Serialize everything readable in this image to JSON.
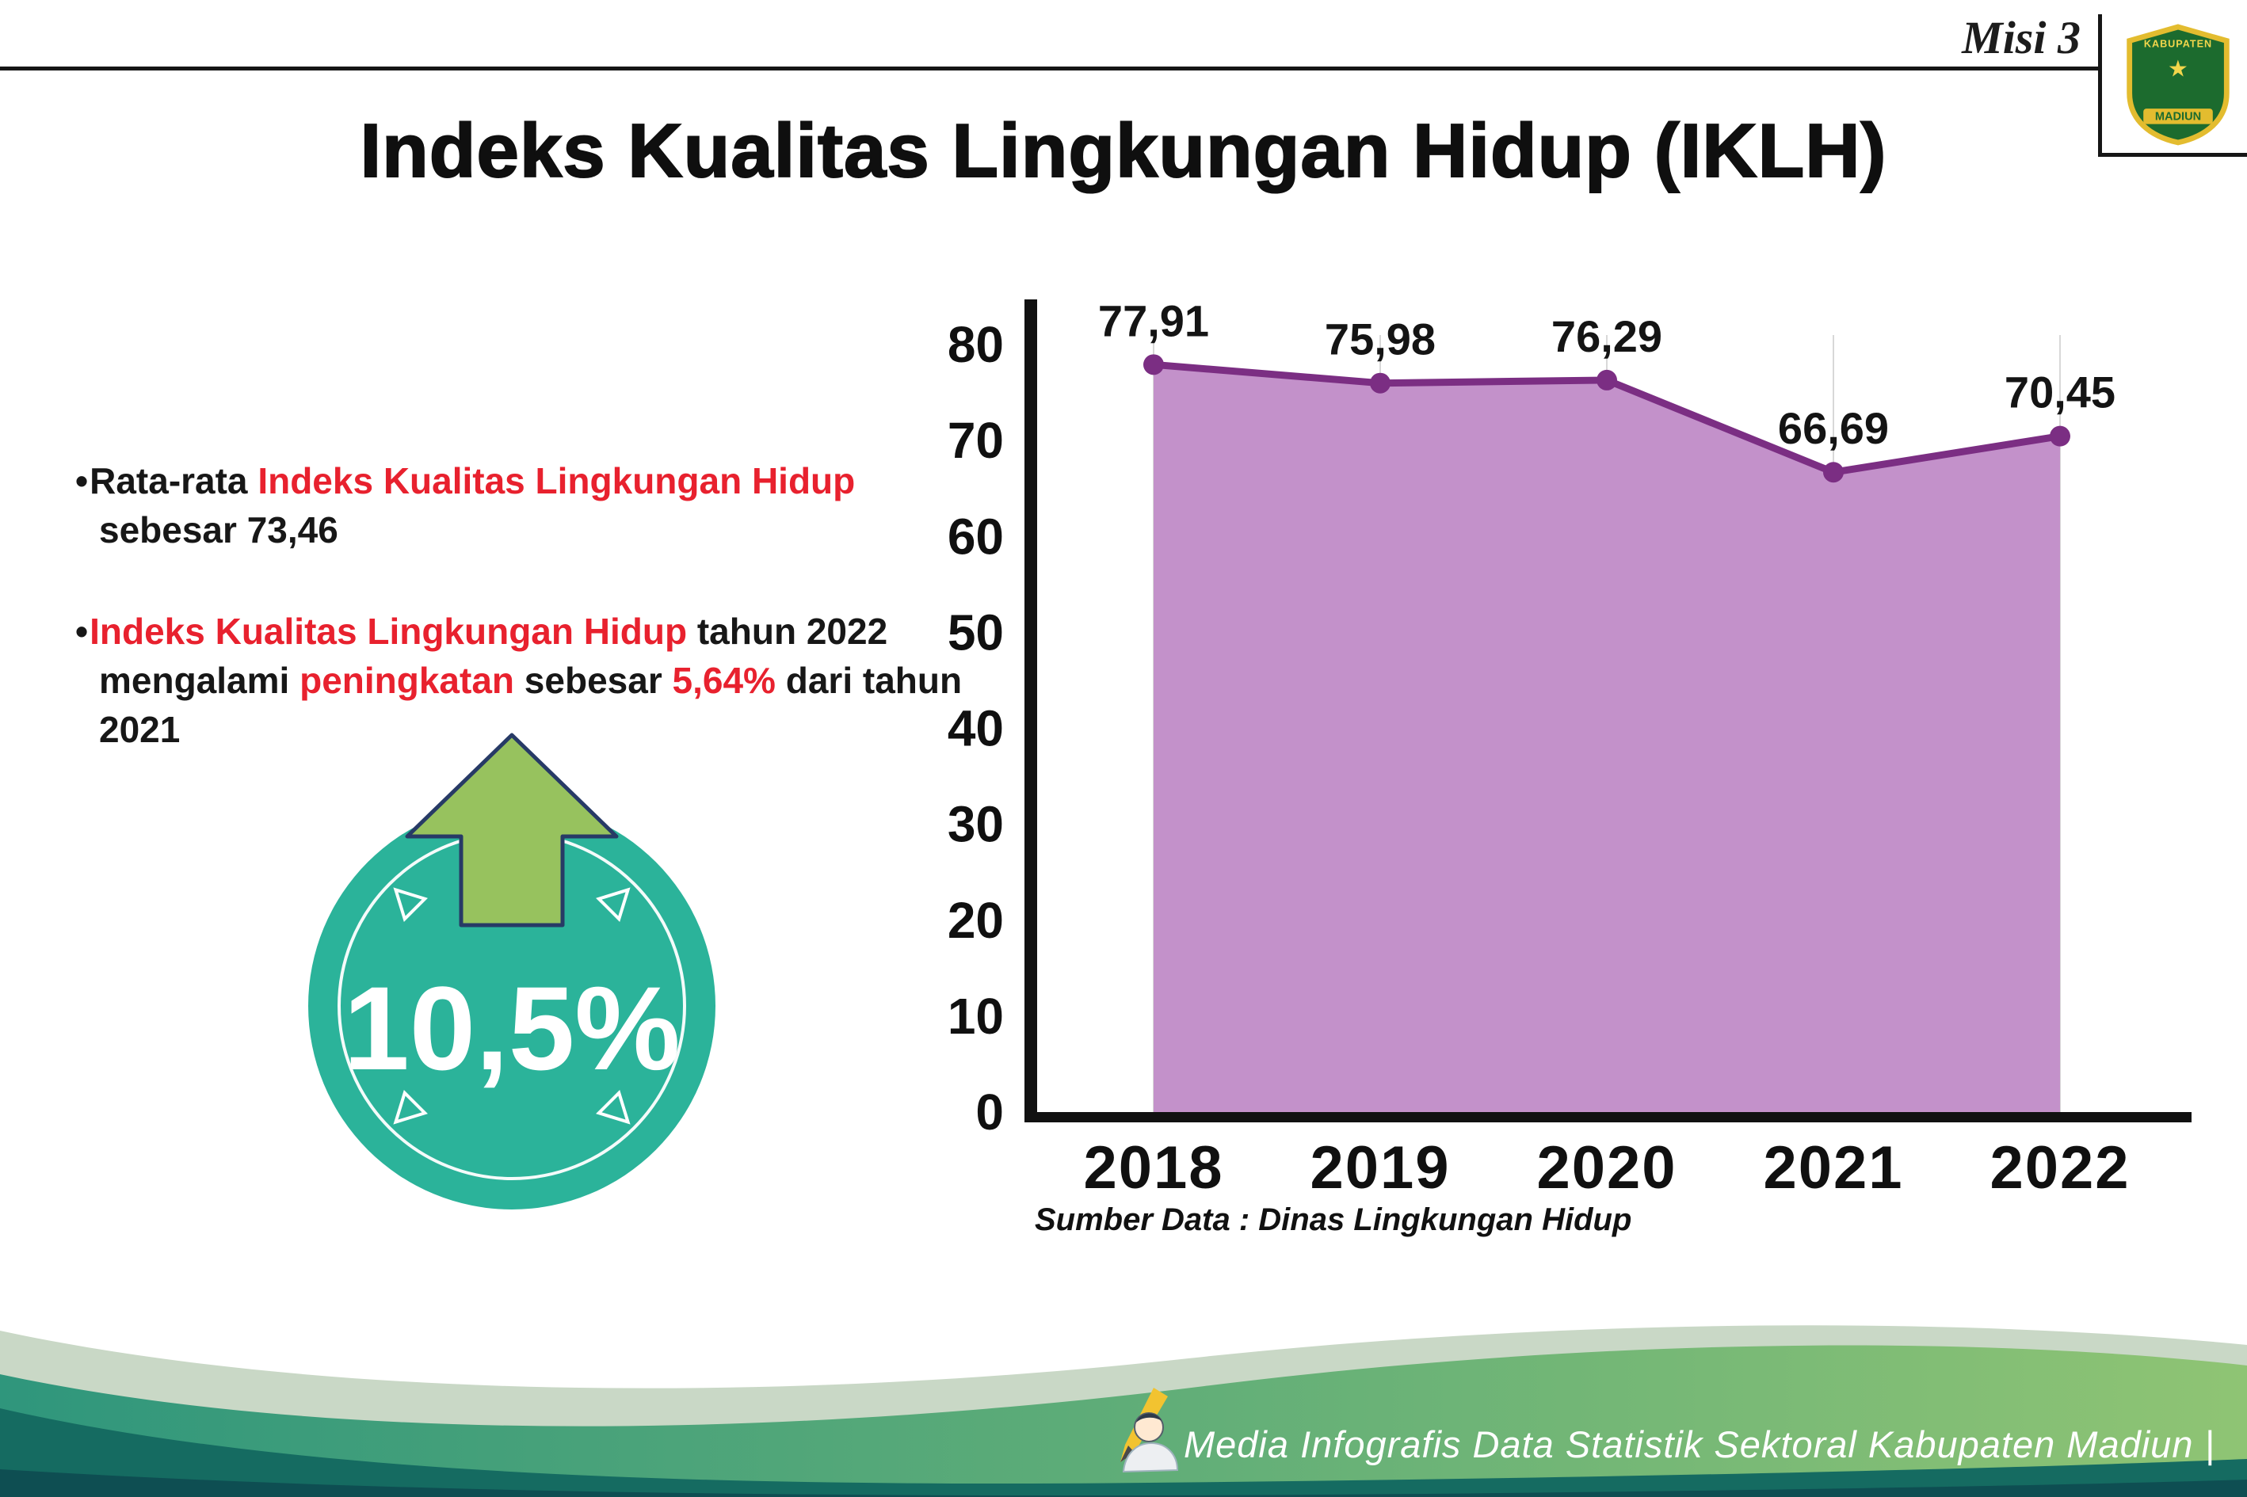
{
  "header": {
    "misi_label": "Misi 3",
    "title": "Indeks Kualitas Lingkungan Hidup (IKLH)"
  },
  "logo": {
    "name": "Kabupaten Madiun emblem",
    "top_text": "KABUPATEN",
    "bottom_text": "MADIUN",
    "star": "★",
    "shield_green": "#1C6B2E",
    "shield_gold": "#E3BC2F"
  },
  "bullets": [
    {
      "segments": [
        {
          "text": "Rata-rata ",
          "red": false
        },
        {
          "text": "Indeks Kualitas Lingkungan Hidup",
          "red": true
        },
        {
          "text": " sebesar 73,46",
          "red": false
        }
      ]
    },
    {
      "segments": [
        {
          "text": "Indeks Kualitas Lingkungan Hidup",
          "red": true
        },
        {
          "text": " tahun 2022 mengalami ",
          "red": false
        },
        {
          "text": "peningkatan",
          "red": true
        },
        {
          "text": " sebesar ",
          "red": false
        },
        {
          "text": "5,64%",
          "red": true
        },
        {
          "text": " dari tahun 2021",
          "red": false
        }
      ]
    }
  ],
  "badge": {
    "value": "10,5%",
    "circle_color": "#2BB39A",
    "arrow_color": "#97C25E",
    "arrow_outline": "#273A66"
  },
  "chart_data": {
    "type": "area",
    "title": "",
    "categories": [
      "2018",
      "2019",
      "2020",
      "2021",
      "2022"
    ],
    "values": [
      77.91,
      75.98,
      76.29,
      66.69,
      70.45
    ],
    "value_labels": [
      "77,91",
      "75,98",
      "76,29",
      "66,69",
      "70,45"
    ],
    "xlabel": "",
    "ylabel": "",
    "ylim": [
      0,
      80
    ],
    "ytick_step": 10,
    "grid": "light vertical gridlines at each year",
    "legend": "none",
    "fill_color": "#C391CA",
    "line_color": "#7B2E83",
    "axis_color": "#111111",
    "gridline_color": "#D8D8D8",
    "source_caption": "Sumber Data : Dinas Lingkungan Hidup"
  },
  "footer": {
    "caption": "Media Infografis Data Statistik Sektoral Kabupaten Madiun |",
    "colors": {
      "light_wave": "#C9D8C6",
      "mid_wave_start": "#2F967C",
      "mid_wave_end": "#8FC474",
      "dark_wave": "#156B61",
      "deep_wave": "#0E4E52"
    }
  },
  "red_color": "#E8212E"
}
